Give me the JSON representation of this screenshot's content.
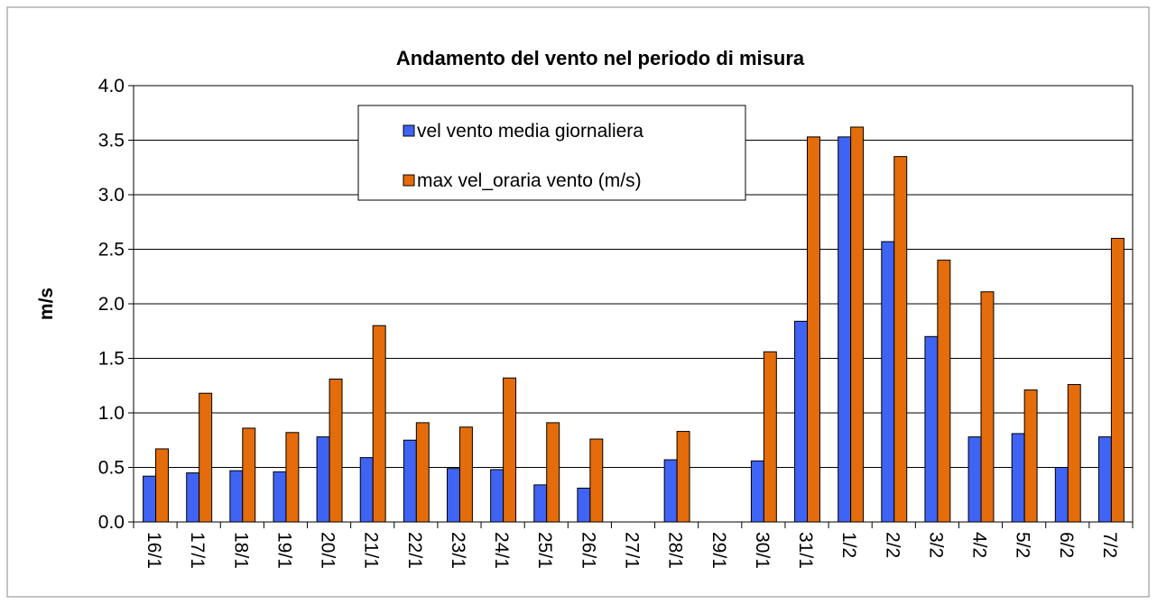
{
  "chart_data": {
    "type": "bar",
    "title": "Andamento del vento nel periodo di misura",
    "ylabel": "m/s",
    "categories": [
      "16/1",
      "17/1",
      "18/1",
      "19/1",
      "20/1",
      "21/1",
      "22/1",
      "23/1",
      "24/1",
      "25/1",
      "26/1",
      "27/1",
      "28/1",
      "29/1",
      "30/1",
      "31/1",
      "1/2",
      "2/2",
      "3/2",
      "4/2",
      "5/2",
      "6/2",
      "7/2"
    ],
    "series": [
      {
        "name": "vel vento media giornaliera",
        "color": "#3f63f2",
        "values": [
          0.42,
          0.45,
          0.47,
          0.46,
          0.78,
          0.59,
          0.75,
          0.49,
          0.48,
          0.34,
          0.31,
          null,
          0.57,
          null,
          0.56,
          1.84,
          3.53,
          2.57,
          1.7,
          0.78,
          0.81,
          0.5,
          0.78
        ]
      },
      {
        "name": "max vel_oraria vento (m/s)",
        "color": "#e46c0a",
        "values": [
          0.67,
          1.18,
          0.86,
          0.82,
          1.31,
          1.8,
          0.91,
          0.87,
          1.32,
          0.91,
          0.76,
          null,
          0.83,
          null,
          1.56,
          3.53,
          3.62,
          3.35,
          2.4,
          2.11,
          1.21,
          1.26,
          2.6
        ]
      }
    ],
    "ylim": [
      0,
      4
    ],
    "yticks": [
      {
        "value": 0,
        "label": "0.0"
      },
      0.5,
      {
        "value": 1,
        "label": "1.0"
      },
      1.5,
      {
        "value": 2,
        "label": "2.0"
      },
      2.5,
      {
        "value": 3,
        "label": "3.0"
      },
      3.5,
      {
        "value": 4,
        "label": "4.0"
      }
    ],
    "grid": true
  }
}
